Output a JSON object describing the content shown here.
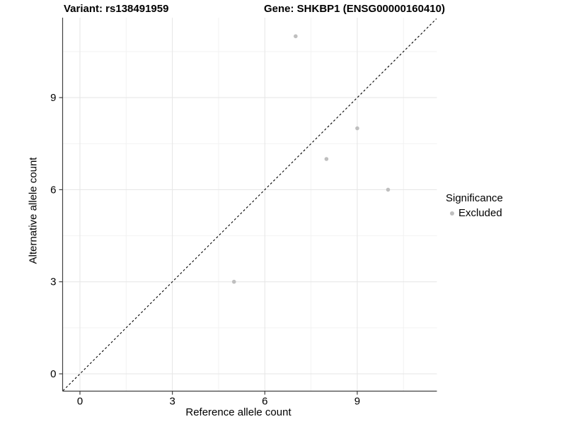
{
  "chart_data": {
    "type": "scatter",
    "titles": {
      "left": "Variant: rs138491959",
      "right": "Gene: SHKBP1 (ENSG00000160410)"
    },
    "xlabel": "Reference allele count",
    "ylabel": "Alternative allele count",
    "xlim": [
      -0.58,
      11.6
    ],
    "ylim": [
      -0.56,
      11.62
    ],
    "x_ticks": {
      "values": [
        0,
        3,
        6,
        9
      ],
      "labels": [
        "0",
        "3",
        "6",
        "9"
      ]
    },
    "y_ticks": {
      "values": [
        0,
        3,
        6,
        9
      ],
      "labels": [
        "0",
        "3",
        "6",
        "9"
      ]
    },
    "x_minor": [
      1.5,
      4.5,
      7.5,
      10.5
    ],
    "y_minor": [
      1.5,
      4.5,
      7.5,
      10.5
    ],
    "series": [
      {
        "name": "Excluded",
        "color": "#bfbfbf",
        "point_radius": 2.8,
        "points": [
          [
            5,
            3
          ],
          [
            7,
            11
          ],
          [
            8,
            7
          ],
          [
            9,
            8
          ],
          [
            10,
            6
          ]
        ]
      }
    ],
    "identity_line": {
      "slope": 1,
      "intercept": 0,
      "linetype": "dashed",
      "color": "#000000"
    },
    "legend": {
      "title": "Significance",
      "position": "right",
      "items": [
        {
          "label": "Excluded",
          "color": "#bfbfbf",
          "marker": "circle"
        }
      ]
    },
    "grid": {
      "major": true,
      "minor": true
    }
  },
  "colors": {
    "background": "#ffffff",
    "grid_major": "#e5e5e5",
    "grid_minor": "#f2f2f2",
    "axis": "#404040",
    "text": "#000000"
  }
}
